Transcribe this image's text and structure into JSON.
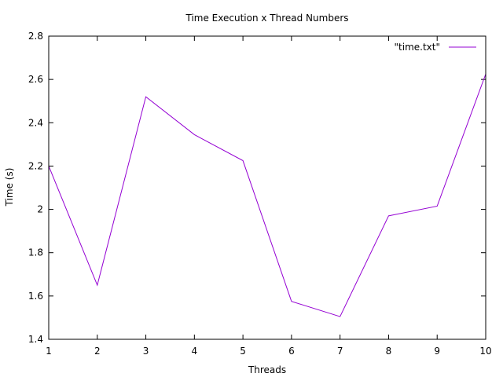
{
  "chart_data": {
    "type": "line",
    "title": "Time Execution x Thread Numbers",
    "xlabel": "Threads",
    "ylabel": "Time (s)",
    "xlim": [
      1,
      10
    ],
    "ylim": [
      1.4,
      2.8
    ],
    "x_ticks": [
      "1",
      "2",
      "3",
      "4",
      "5",
      "6",
      "7",
      "8",
      "9",
      "10"
    ],
    "y_ticks": [
      "1.4",
      "1.6",
      "1.8",
      "2",
      "2.2",
      "2.4",
      "2.6",
      "2.8"
    ],
    "grid": false,
    "legend_position": "top-right",
    "series": [
      {
        "name": "\"time.txt\"",
        "color": "#9400d3",
        "x": [
          1,
          2,
          3,
          4,
          5,
          6,
          7,
          8,
          9,
          10
        ],
        "y": [
          2.2,
          1.65,
          2.52,
          2.345,
          2.225,
          1.575,
          1.505,
          1.97,
          2.015,
          2.625
        ]
      }
    ]
  }
}
